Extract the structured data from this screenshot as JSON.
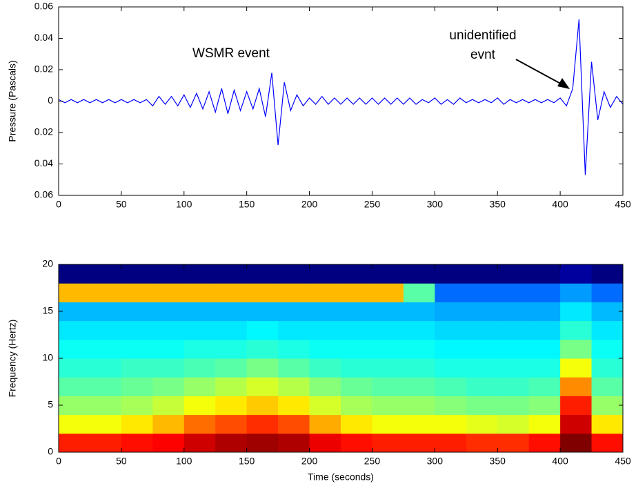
{
  "chart_data": [
    {
      "type": "line",
      "ylabel": "Pressure (Pascals)",
      "annotations": [
        {
          "lines": [
            "WSMR event"
          ]
        },
        {
          "lines": [
            "unidentified",
            "evnt"
          ]
        }
      ],
      "x": [
        0,
        5,
        10,
        15,
        20,
        25,
        30,
        35,
        40,
        45,
        50,
        55,
        60,
        65,
        70,
        75,
        80,
        85,
        90,
        95,
        100,
        105,
        110,
        115,
        120,
        125,
        130,
        135,
        140,
        145,
        150,
        155,
        160,
        165,
        170,
        175,
        180,
        185,
        190,
        195,
        200,
        205,
        210,
        215,
        220,
        225,
        230,
        235,
        240,
        245,
        250,
        255,
        260,
        265,
        270,
        275,
        280,
        285,
        290,
        295,
        300,
        305,
        310,
        315,
        320,
        325,
        330,
        335,
        340,
        345,
        350,
        355,
        360,
        365,
        370,
        375,
        380,
        385,
        390,
        395,
        400,
        405,
        410,
        415,
        420,
        425,
        430,
        435,
        440,
        445,
        450
      ],
      "series": [
        {
          "color": "#0000ff",
          "values": [
            0.001,
            -0.001,
            0.001,
            -0.001,
            0.001,
            -0.001,
            0.001,
            -0.001,
            0.001,
            -0.001,
            0.001,
            -0.001,
            0.001,
            -0.001,
            0.001,
            -0.003,
            0.003,
            -0.002,
            0.003,
            -0.003,
            0.004,
            -0.004,
            0.005,
            -0.005,
            0.006,
            -0.007,
            0.008,
            -0.008,
            0.007,
            -0.006,
            0.006,
            -0.005,
            0.008,
            -0.01,
            0.018,
            -0.028,
            0.012,
            -0.006,
            0.004,
            -0.003,
            0.002,
            -0.002,
            0.003,
            -0.002,
            0.002,
            -0.002,
            0.002,
            -0.002,
            0.002,
            -0.002,
            0.002,
            -0.002,
            0.002,
            -0.002,
            0.002,
            -0.002,
            0.002,
            -0.002,
            0.001,
            -0.001,
            0.002,
            -0.002,
            0.001,
            -0.002,
            0.002,
            -0.001,
            0.001,
            -0.001,
            0.001,
            -0.001,
            0.002,
            -0.002,
            0.001,
            -0.001,
            0.001,
            -0.001,
            0.001,
            -0.001,
            0.001,
            -0.001,
            0.002,
            -0.003,
            0.008,
            0.052,
            -0.047,
            0.025,
            -0.012,
            0.006,
            -0.004,
            0.003,
            -0.002
          ]
        }
      ],
      "xlim": [
        0,
        450
      ],
      "xticks": [
        0,
        50,
        100,
        150,
        200,
        250,
        300,
        350,
        400,
        450
      ],
      "ylim": [
        -0.06,
        0.06
      ],
      "yticks": [
        {
          "value": -0.06,
          "label": "0.06"
        },
        {
          "value": -0.04,
          "label": "0.04"
        },
        {
          "value": -0.02,
          "label": "0.02"
        },
        0,
        0.02,
        0.04,
        0.06
      ]
    },
    {
      "type": "heatmap",
      "xlabel": "Time (seconds)",
      "ylabel": "Frequency (Hertz)",
      "colormap": "jet",
      "xbins": [
        0,
        25,
        50,
        75,
        100,
        125,
        150,
        175,
        200,
        225,
        250,
        275,
        300,
        325,
        350,
        375,
        400,
        425,
        450
      ],
      "ybins": [
        0,
        2,
        4,
        6,
        8,
        10,
        12,
        14,
        16,
        18,
        20
      ],
      "values": [
        [
          0.85,
          0.85,
          0.86,
          0.87,
          0.9,
          0.92,
          0.93,
          0.92,
          0.88,
          0.86,
          0.85,
          0.85,
          0.85,
          0.84,
          0.84,
          0.86,
          0.95,
          0.86
        ],
        [
          0.7,
          0.7,
          0.72,
          0.75,
          0.8,
          0.82,
          0.84,
          0.82,
          0.76,
          0.72,
          0.7,
          0.7,
          0.7,
          0.69,
          0.68,
          0.7,
          0.9,
          0.72
        ],
        [
          0.64,
          0.64,
          0.65,
          0.67,
          0.7,
          0.72,
          0.74,
          0.72,
          0.68,
          0.65,
          0.64,
          0.64,
          0.63,
          0.62,
          0.62,
          0.63,
          0.85,
          0.64
        ],
        [
          0.6,
          0.6,
          0.61,
          0.62,
          0.64,
          0.66,
          0.68,
          0.66,
          0.63,
          0.61,
          0.6,
          0.6,
          0.59,
          0.58,
          0.58,
          0.59,
          0.78,
          0.6
        ],
        [
          0.57,
          0.57,
          0.58,
          0.58,
          0.59,
          0.6,
          0.62,
          0.6,
          0.58,
          0.57,
          0.57,
          0.57,
          0.56,
          0.56,
          0.56,
          0.56,
          0.7,
          0.57
        ],
        [
          0.55,
          0.55,
          0.55,
          0.55,
          0.56,
          0.56,
          0.57,
          0.56,
          0.55,
          0.55,
          0.55,
          0.55,
          0.54,
          0.54,
          0.54,
          0.54,
          0.62,
          0.55
        ],
        [
          0.53,
          0.53,
          0.53,
          0.53,
          0.53,
          0.53,
          0.54,
          0.53,
          0.53,
          0.53,
          0.53,
          0.53,
          0.52,
          0.52,
          0.52,
          0.52,
          0.57,
          0.53
        ],
        [
          0.5,
          0.5,
          0.5,
          0.5,
          0.5,
          0.5,
          0.5,
          0.5,
          0.5,
          0.5,
          0.5,
          0.5,
          0.49,
          0.49,
          0.49,
          0.49,
          0.53,
          0.5
        ],
        [
          0.75,
          0.75,
          0.75,
          0.75,
          0.75,
          0.75,
          0.75,
          0.75,
          0.75,
          0.75,
          0.75,
          0.6,
          0.45,
          0.45,
          0.45,
          0.45,
          0.48,
          0.45
        ],
        [
          0.3,
          0.3,
          0.3,
          0.3,
          0.3,
          0.3,
          0.3,
          0.3,
          0.3,
          0.3,
          0.3,
          0.3,
          0.3,
          0.3,
          0.3,
          0.3,
          0.32,
          0.3
        ]
      ],
      "xlim": [
        0,
        450
      ],
      "xticks": [
        0,
        50,
        100,
        150,
        200,
        250,
        300,
        350,
        400,
        450
      ],
      "ylim": [
        0,
        20
      ],
      "yticks": [
        0,
        5,
        10,
        15,
        20
      ]
    }
  ]
}
